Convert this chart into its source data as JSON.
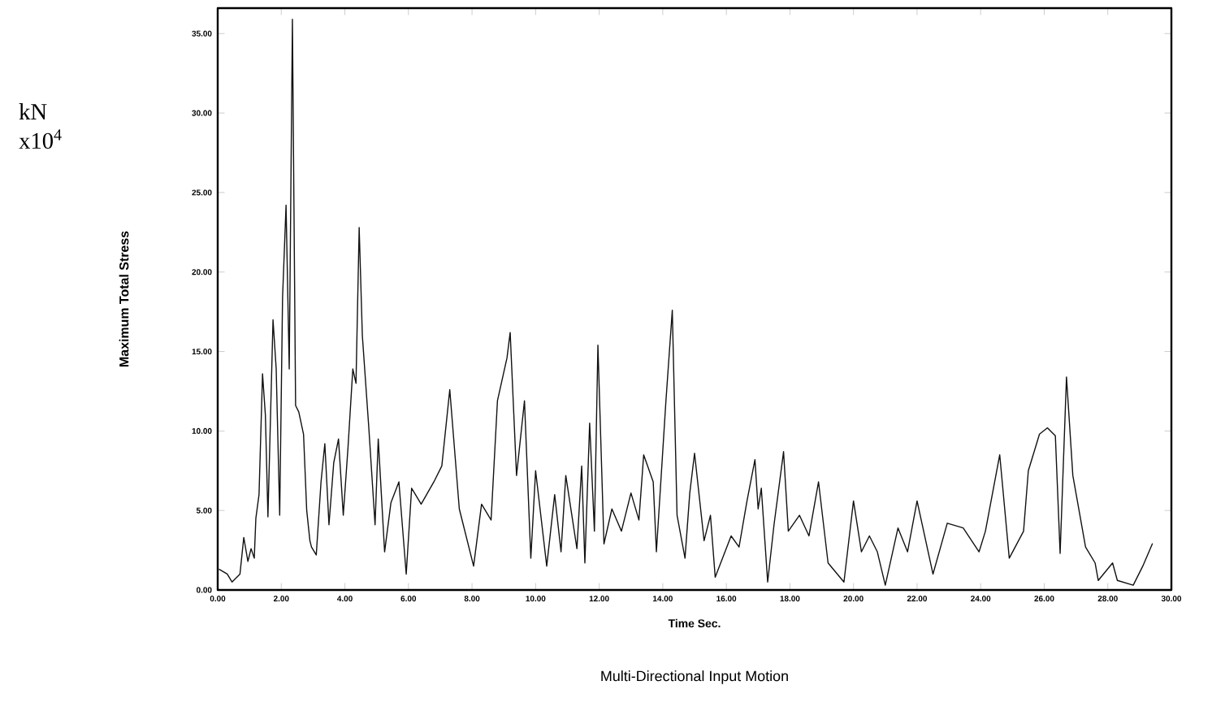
{
  "chart_data": {
    "type": "line",
    "title": "Multi-Directional Input Motion",
    "xlabel": "Time Sec.",
    "ylabel": "Maximum Total Stress",
    "annotations": [
      "kN x10$^{4}$"
    ],
    "color": "#111111",
    "x": [
      0.05,
      0.3,
      0.45,
      0.7,
      0.82,
      0.95,
      1.05,
      1.15,
      1.2,
      1.3,
      1.41,
      1.5,
      1.58,
      1.74,
      1.84,
      1.95,
      2.04,
      2.15,
      2.25,
      2.35,
      2.45,
      2.55,
      2.7,
      2.8,
      2.9,
      2.95,
      3.1,
      3.25,
      3.37,
      3.5,
      3.65,
      3.8,
      3.95,
      4.1,
      4.25,
      4.35,
      4.45,
      4.55,
      4.75,
      4.95,
      5.05,
      5.25,
      5.45,
      5.7,
      5.93,
      6.1,
      6.4,
      6.8,
      7.05,
      7.3,
      7.6,
      8.05,
      8.3,
      8.6,
      8.8,
      9.1,
      9.2,
      9.4,
      9.65,
      9.85,
      10.0,
      10.35,
      10.6,
      10.8,
      10.95,
      11.3,
      11.45,
      11.55,
      11.7,
      11.85,
      11.96,
      12.15,
      12.4,
      12.7,
      13.0,
      13.25,
      13.4,
      13.7,
      13.8,
      14.1,
      14.3,
      14.45,
      14.7,
      14.85,
      15.0,
      15.3,
      15.5,
      15.65,
      16.15,
      16.4,
      16.65,
      16.9,
      17.0,
      17.1,
      17.3,
      17.5,
      17.8,
      17.95,
      18.3,
      18.6,
      18.9,
      19.2,
      19.7,
      20.0,
      20.25,
      20.5,
      20.75,
      21.0,
      21.4,
      21.7,
      22.0,
      22.5,
      22.95,
      23.45,
      23.95,
      24.15,
      24.6,
      24.9,
      25.35,
      25.5,
      25.85,
      26.1,
      26.35,
      26.5,
      26.7,
      26.9,
      27.3,
      27.6,
      27.7,
      28.15,
      28.3,
      28.8,
      29.1,
      29.4
    ],
    "values": [
      1.3,
      1.0,
      0.5,
      1.0,
      3.3,
      1.8,
      2.6,
      2.0,
      4.5,
      6.0,
      13.6,
      11.0,
      4.6,
      17.0,
      13.9,
      4.7,
      18.4,
      24.2,
      13.9,
      35.9,
      11.6,
      11.2,
      9.8,
      5.0,
      3.1,
      2.7,
      2.2,
      6.8,
      9.2,
      4.1,
      8.0,
      9.5,
      4.7,
      9.0,
      13.9,
      13.0,
      22.8,
      16.0,
      10.3,
      4.1,
      9.5,
      2.4,
      5.5,
      6.8,
      1.0,
      6.4,
      5.4,
      6.8,
      7.8,
      12.6,
      5.1,
      1.5,
      5.4,
      4.4,
      11.9,
      14.6,
      16.2,
      7.2,
      11.9,
      2.0,
      7.5,
      1.5,
      6.0,
      2.4,
      7.2,
      2.6,
      7.8,
      1.7,
      10.5,
      3.7,
      15.4,
      2.9,
      5.1,
      3.7,
      6.1,
      4.4,
      8.5,
      6.8,
      2.4,
      11.9,
      17.6,
      4.7,
      2.0,
      6.1,
      8.6,
      3.1,
      4.7,
      0.8,
      3.4,
      2.7,
      5.6,
      8.2,
      5.1,
      6.4,
      0.5,
      4.1,
      8.7,
      3.7,
      4.7,
      3.4,
      6.8,
      1.7,
      0.5,
      5.6,
      2.4,
      3.4,
      2.4,
      0.3,
      3.9,
      2.4,
      5.6,
      1.0,
      4.2,
      3.9,
      2.4,
      3.7,
      8.5,
      2.0,
      3.7,
      7.5,
      9.8,
      10.2,
      9.7,
      2.3,
      13.4,
      7.2,
      2.7,
      1.7,
      0.6,
      1.7,
      0.6,
      0.3,
      1.5,
      2.9
    ],
    "xlim": [
      0,
      30
    ],
    "ylim": [
      0,
      36.6
    ],
    "xticks": [
      {
        "value": 0,
        "label": "0.00"
      },
      {
        "value": 2,
        "label": "2.00"
      },
      {
        "value": 4,
        "label": "4.00"
      },
      {
        "value": 6,
        "label": "6.00"
      },
      {
        "value": 8,
        "label": "8.00"
      },
      {
        "value": 10,
        "label": "10.00"
      },
      {
        "value": 12,
        "label": "12.00"
      },
      {
        "value": 14,
        "label": "14.00"
      },
      {
        "value": 16,
        "label": "16.00"
      },
      {
        "value": 18,
        "label": "18.00"
      },
      {
        "value": 20,
        "label": "20.00"
      },
      {
        "value": 22,
        "label": "22.00"
      },
      {
        "value": 24,
        "label": "24.00"
      },
      {
        "value": 26,
        "label": "26.00"
      },
      {
        "value": 28,
        "label": "28.00"
      },
      {
        "value": 30,
        "label": "30.00"
      }
    ],
    "yticks": [
      {
        "value": 0,
        "label": "0.00"
      },
      {
        "value": 5,
        "label": "5.00"
      },
      {
        "value": 10,
        "label": "10.00"
      },
      {
        "value": 15,
        "label": "15.00"
      },
      {
        "value": 20,
        "label": "20.00"
      },
      {
        "value": 25,
        "label": "25.00"
      },
      {
        "value": 30,
        "label": "30.00"
      },
      {
        "value": 35,
        "label": "35.00"
      }
    ]
  }
}
